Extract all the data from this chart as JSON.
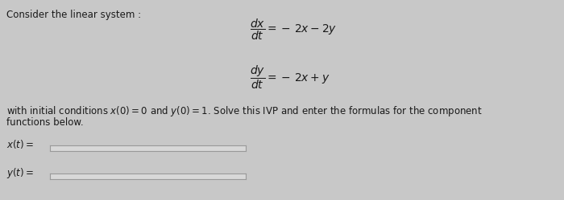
{
  "title_text": "Consider the linear system :",
  "eq1_full": "$\\dfrac{dx}{dt} = -\\,2x - 2y$",
  "eq2_full": "$\\dfrac{dy}{dt} = -\\,2x + y$",
  "ic_text": "with initial conditions $x(0) = 0$ and $y(0) = 1$. Solve this IVP and enter the formulas for the component",
  "ic_text2": "functions below.",
  "label_x": "$x(t) =$",
  "label_y": "$y(t) =$",
  "bg_color": "#c8c8c8",
  "box_facecolor": "#d8d8d8",
  "box_edgecolor": "#999999",
  "text_color": "#1a1a1a",
  "font_size": 8.5,
  "eq_font_size": 10,
  "fig_width": 7.0,
  "fig_height": 2.49,
  "dpi": 100
}
